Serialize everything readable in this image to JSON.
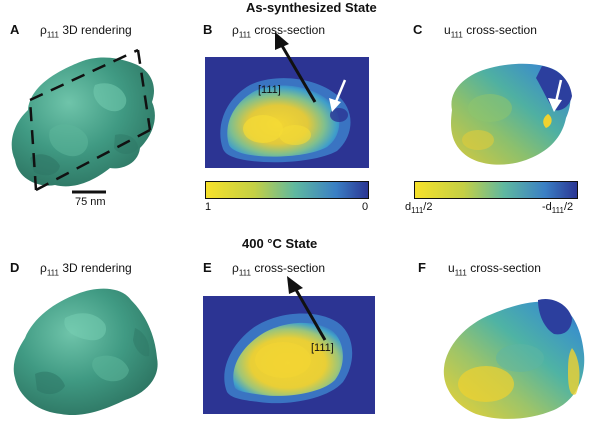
{
  "rows": [
    {
      "title": "As-synthesized State",
      "panels": [
        {
          "letter": "A",
          "symbol": "ρ",
          "sub": "111",
          "desc": "3D rendering",
          "scale_bar": "75 nm"
        },
        {
          "letter": "B",
          "symbol": "ρ",
          "sub": "111",
          "desc": "cross-section",
          "direction": "[111]",
          "colorbar": {
            "min_label": "1",
            "max_label": "0"
          }
        },
        {
          "letter": "C",
          "symbol": "u",
          "sub": "111",
          "desc": "cross-section",
          "colorbar": {
            "min_sym": "d",
            "min_sub": "111",
            "min_rest": "/2",
            "max_sym": "-d",
            "max_sub": "111",
            "max_rest": "/2"
          }
        }
      ]
    },
    {
      "title": "400 °C State",
      "panels": [
        {
          "letter": "D",
          "symbol": "ρ",
          "sub": "111",
          "desc": "3D rendering"
        },
        {
          "letter": "E",
          "symbol": "ρ",
          "sub": "111",
          "desc": "cross-section",
          "direction": "[111]"
        },
        {
          "letter": "F",
          "symbol": "u",
          "sub": "111",
          "desc": "cross-section"
        }
      ]
    }
  ],
  "colors": {
    "crystal": "#3f9c84",
    "background_navy": "#2c3493",
    "cmap_yellow": "#f3d633",
    "cmap_green": "#5db6a4",
    "cmap_blue": "#2f63b5"
  }
}
